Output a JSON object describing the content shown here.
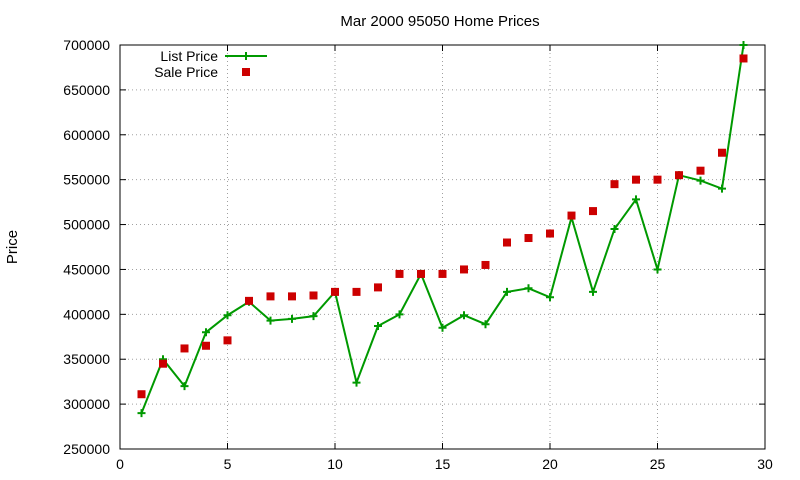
{
  "chart_data": {
    "type": "line",
    "title": "Mar 2000 95050 Home Prices",
    "xlabel": "",
    "ylabel": "Price",
    "xlim": [
      0,
      30
    ],
    "ylim": [
      250000,
      700000
    ],
    "xticks": [
      0,
      5,
      10,
      15,
      20,
      25,
      30
    ],
    "yticks": [
      250000,
      300000,
      350000,
      400000,
      450000,
      500000,
      550000,
      600000,
      650000,
      700000
    ],
    "grid": true,
    "legend_position": "top-left",
    "series": [
      {
        "name": "List Price",
        "style": "line+cross",
        "color": "#009900",
        "x": [
          1,
          2,
          3,
          4,
          5,
          6,
          7,
          8,
          9,
          10,
          11,
          12,
          13,
          14,
          15,
          16,
          17,
          18,
          19,
          20,
          21,
          22,
          23,
          24,
          25,
          26,
          27,
          28,
          29
        ],
        "values": [
          290000,
          350000,
          320000,
          380000,
          399000,
          414000,
          393000,
          395000,
          398000,
          425000,
          324000,
          387000,
          400000,
          445000,
          385000,
          399000,
          389000,
          425000,
          429000,
          419000,
          508000,
          425000,
          495000,
          528000,
          450000,
          555000,
          549000,
          540000,
          700000
        ]
      },
      {
        "name": "Sale Price",
        "style": "square",
        "color": "#cc0000",
        "x": [
          1,
          2,
          3,
          4,
          5,
          6,
          7,
          8,
          9,
          10,
          11,
          12,
          13,
          14,
          15,
          16,
          17,
          18,
          19,
          20,
          21,
          22,
          23,
          24,
          25,
          26,
          27,
          28,
          29
        ],
        "values": [
          311000,
          345000,
          362000,
          365000,
          371000,
          415000,
          420000,
          420000,
          421000,
          425000,
          425000,
          430000,
          445000,
          445000,
          445000,
          450000,
          455000,
          480000,
          485000,
          490000,
          510000,
          515000,
          545000,
          550000,
          550000,
          555000,
          560000,
          580000,
          685000
        ]
      }
    ]
  }
}
